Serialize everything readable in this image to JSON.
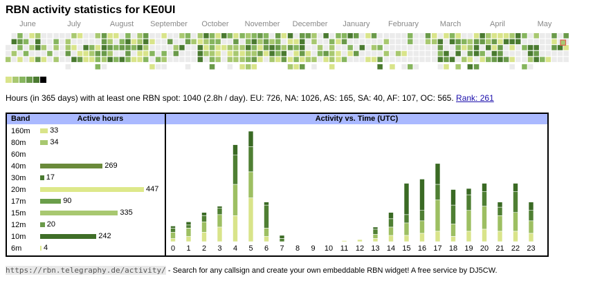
{
  "page_title": "RBN activity statistics for KE0UI",
  "calendar": {
    "months": [
      "June",
      "July",
      "August",
      "September",
      "October",
      "November",
      "December",
      "January",
      "February",
      "March",
      "April",
      "May"
    ],
    "today_color": "#e06050"
  },
  "legend_colors": [
    "#d9e48a",
    "#a8c870",
    "#86b55e",
    "#6a9a4a",
    "#4a7a30",
    "#000000"
  ],
  "summary": {
    "text": "Hours (in 365 days) with at least one RBN spot: 1040 (2.8h / day). EU: 726, NA: 1026, AS: 165, SA: 40, AF: 107, OC: 565.",
    "rank_label": "Rank: 261"
  },
  "band_table": {
    "header_band": "Band",
    "header_hours": "Active hours",
    "rows": [
      {
        "band": "160m",
        "hours": 33,
        "color": "#d9e48a"
      },
      {
        "band": "80m",
        "hours": 34,
        "color": "#a8c870"
      },
      {
        "band": "60m",
        "hours": 0,
        "color": "#a8c870"
      },
      {
        "band": "40m",
        "hours": 269,
        "color": "#6a8a3a"
      },
      {
        "band": "30m",
        "hours": 17,
        "color": "#4a7a30"
      },
      {
        "band": "20m",
        "hours": 447,
        "color": "#dde88a"
      },
      {
        "band": "17m",
        "hours": 90,
        "color": "#6a9e4a"
      },
      {
        "band": "15m",
        "hours": 335,
        "color": "#a8c870"
      },
      {
        "band": "12m",
        "hours": 20,
        "color": "#6a9a4a"
      },
      {
        "band": "10m",
        "hours": 242,
        "color": "#3f6e28"
      },
      {
        "band": "6m",
        "hours": 4,
        "color": "#dde88a"
      }
    ]
  },
  "activity_header": "Activity vs. Time (UTC)",
  "chart_data": {
    "type": "bar",
    "stacked": true,
    "title": "Activity vs. Time (UTC)",
    "categories": [
      "0",
      "1",
      "2",
      "3",
      "4",
      "5",
      "6",
      "7",
      "8",
      "9",
      "10",
      "11",
      "12",
      "13",
      "14",
      "15",
      "16",
      "17",
      "18",
      "19",
      "20",
      "21",
      "22",
      "23"
    ],
    "series_colors": [
      "#d9e48a",
      "#9dbf62",
      "#4f7f33",
      "#3a6a24"
    ],
    "stacks": [
      [
        3,
        6,
        4,
        2
      ],
      [
        5,
        8,
        3,
        3
      ],
      [
        9,
        10,
        6,
        3
      ],
      [
        14,
        12,
        6,
        2
      ],
      [
        25,
        30,
        28,
        10
      ],
      [
        42,
        25,
        24,
        15
      ],
      [
        5,
        8,
        22,
        3
      ],
      [
        0,
        0,
        3,
        3
      ],
      [
        0,
        0,
        0,
        0
      ],
      [
        0,
        0,
        0,
        0
      ],
      [
        0,
        0,
        0,
        0
      ],
      [
        1,
        0,
        0,
        0
      ],
      [
        2,
        0,
        0,
        0
      ],
      [
        3,
        4,
        5,
        2
      ],
      [
        6,
        8,
        8,
        6
      ],
      [
        6,
        12,
        8,
        30
      ],
      [
        8,
        12,
        10,
        30
      ],
      [
        10,
        30,
        15,
        20
      ],
      [
        5,
        12,
        18,
        15
      ],
      [
        10,
        20,
        15,
        6
      ],
      [
        12,
        22,
        14,
        8
      ],
      [
        10,
        15,
        8,
        5
      ],
      [
        10,
        18,
        20,
        8
      ],
      [
        8,
        12,
        10,
        8
      ]
    ],
    "xlabel": "",
    "ylabel": ""
  },
  "footer": {
    "url": "https://rbn.telegraphy.de/activity/",
    "text": " - Search for any callsign and create your own embeddable RBN widget! A free service by DJ5CW."
  }
}
